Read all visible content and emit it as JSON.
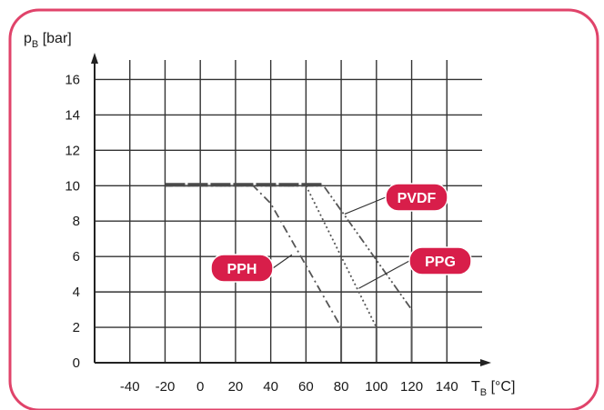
{
  "colors": {
    "frame": "#e0436a",
    "callout_fill": "#d81e4a",
    "callout_text": "#ffffff",
    "grid": "#333333",
    "curve": "#555555"
  },
  "chart_data": {
    "type": "line",
    "y_axis_label_main": "p",
    "y_axis_label_sub": "B",
    "y_axis_label_unit": " [bar]",
    "x_axis_label_main": "T",
    "x_axis_label_sub": "B",
    "x_axis_label_unit": " [°C]",
    "x_ticks": [
      -40,
      -20,
      0,
      20,
      40,
      60,
      80,
      100,
      120,
      140
    ],
    "y_ticks": [
      0,
      2,
      4,
      6,
      8,
      10,
      12,
      14,
      16
    ],
    "xlim": [
      -60,
      160
    ],
    "ylim": [
      0,
      17
    ],
    "grid": true,
    "series": [
      {
        "name": "PPH",
        "style": "dash-dot",
        "x": [
          -20,
          30,
          40,
          80
        ],
        "y": [
          10,
          10,
          9,
          2
        ]
      },
      {
        "name": "PPG",
        "style": "dotted",
        "x": [
          -20,
          60,
          100
        ],
        "y": [
          10,
          10,
          2
        ]
      },
      {
        "name": "PVDF",
        "style": "dash-dot-dot",
        "x": [
          -20,
          70,
          120
        ],
        "y": [
          10,
          10,
          3
        ]
      }
    ],
    "callouts": [
      {
        "label": "PVDF",
        "series": "PVDF",
        "point": [
          82,
          8.4
        ]
      },
      {
        "label": "PPH",
        "series": "PPH",
        "point": [
          52,
          6.1
        ]
      },
      {
        "label": "PPG",
        "series": "PPG",
        "point": [
          90,
          4.2
        ]
      }
    ]
  }
}
